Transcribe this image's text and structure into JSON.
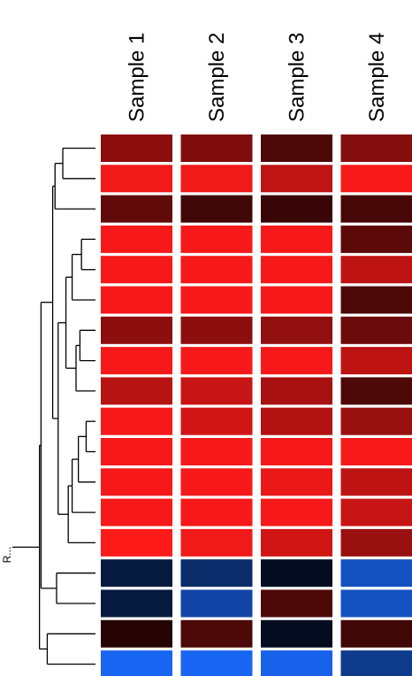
{
  "chart_data": {
    "type": "heatmap",
    "title": "",
    "xlabel": "",
    "ylabel": "",
    "columns": [
      "Sample 1",
      "Sample 2",
      "Sample 3",
      "Sample 4"
    ],
    "rows": 18,
    "root_label": "R...",
    "color_scale": {
      "low": "#1a6bff",
      "mid": "#000000",
      "high": "#ff1a1a"
    },
    "values": [
      [
        0.55,
        0.5,
        0.3,
        0.52
      ],
      [
        0.95,
        0.95,
        0.75,
        0.98
      ],
      [
        0.38,
        0.25,
        0.22,
        0.28
      ],
      [
        0.97,
        0.97,
        0.97,
        0.36
      ],
      [
        0.97,
        0.97,
        0.97,
        0.74
      ],
      [
        0.97,
        0.97,
        0.97,
        0.3
      ],
      [
        0.55,
        0.55,
        0.57,
        0.42
      ],
      [
        0.97,
        0.97,
        0.97,
        0.74
      ],
      [
        0.72,
        0.78,
        0.66,
        0.3
      ],
      [
        0.97,
        0.82,
        0.7,
        0.6
      ],
      [
        0.97,
        0.97,
        0.97,
        0.98
      ],
      [
        0.97,
        0.97,
        0.92,
        0.74
      ],
      [
        0.97,
        0.97,
        0.97,
        0.78
      ],
      [
        1.0,
        0.95,
        0.82,
        0.6
      ],
      [
        -0.25,
        -0.42,
        -0.12,
        -0.75
      ],
      [
        -0.25,
        -0.65,
        0.3,
        -0.75
      ],
      [
        0.15,
        0.3,
        -0.12,
        0.25
      ],
      [
        -0.95,
        -0.95,
        -0.92,
        -0.55
      ]
    ]
  },
  "dendrogram": {
    "leaf_order": [
      0,
      1,
      2,
      3,
      4,
      5,
      6,
      7,
      8,
      9,
      10,
      11,
      12,
      13,
      14,
      15,
      16,
      17
    ],
    "merges": [
      {
        "a": "L0",
        "b": "L1",
        "height": 0.42
      },
      {
        "a": "N0",
        "b": "L2",
        "height": 0.52
      },
      {
        "a": "L3",
        "b": "L4",
        "height": 0.18
      },
      {
        "a": "N2",
        "b": "L5",
        "height": 0.3
      },
      {
        "a": "L6",
        "b": "L7",
        "height": 0.2
      },
      {
        "a": "N4",
        "b": "L8",
        "height": 0.25
      },
      {
        "a": "N3",
        "b": "N5",
        "height": 0.38
      },
      {
        "a": "L9",
        "b": "L10",
        "height": 0.12
      },
      {
        "a": "N7",
        "b": "L11",
        "height": 0.22
      },
      {
        "a": "N8",
        "b": "L12",
        "height": 0.3
      },
      {
        "a": "N9",
        "b": "L13",
        "height": 0.35
      },
      {
        "a": "N6",
        "b": "N10",
        "height": 0.48
      },
      {
        "a": "N1",
        "b": "N11",
        "height": 0.55
      },
      {
        "a": "L14",
        "b": "L15",
        "height": 0.5
      },
      {
        "a": "N12",
        "b": "N13",
        "height": 0.7
      },
      {
        "a": "L16",
        "b": "L17",
        "height": 0.62
      },
      {
        "a": "N14",
        "b": "N15",
        "height": 0.72
      }
    ]
  }
}
